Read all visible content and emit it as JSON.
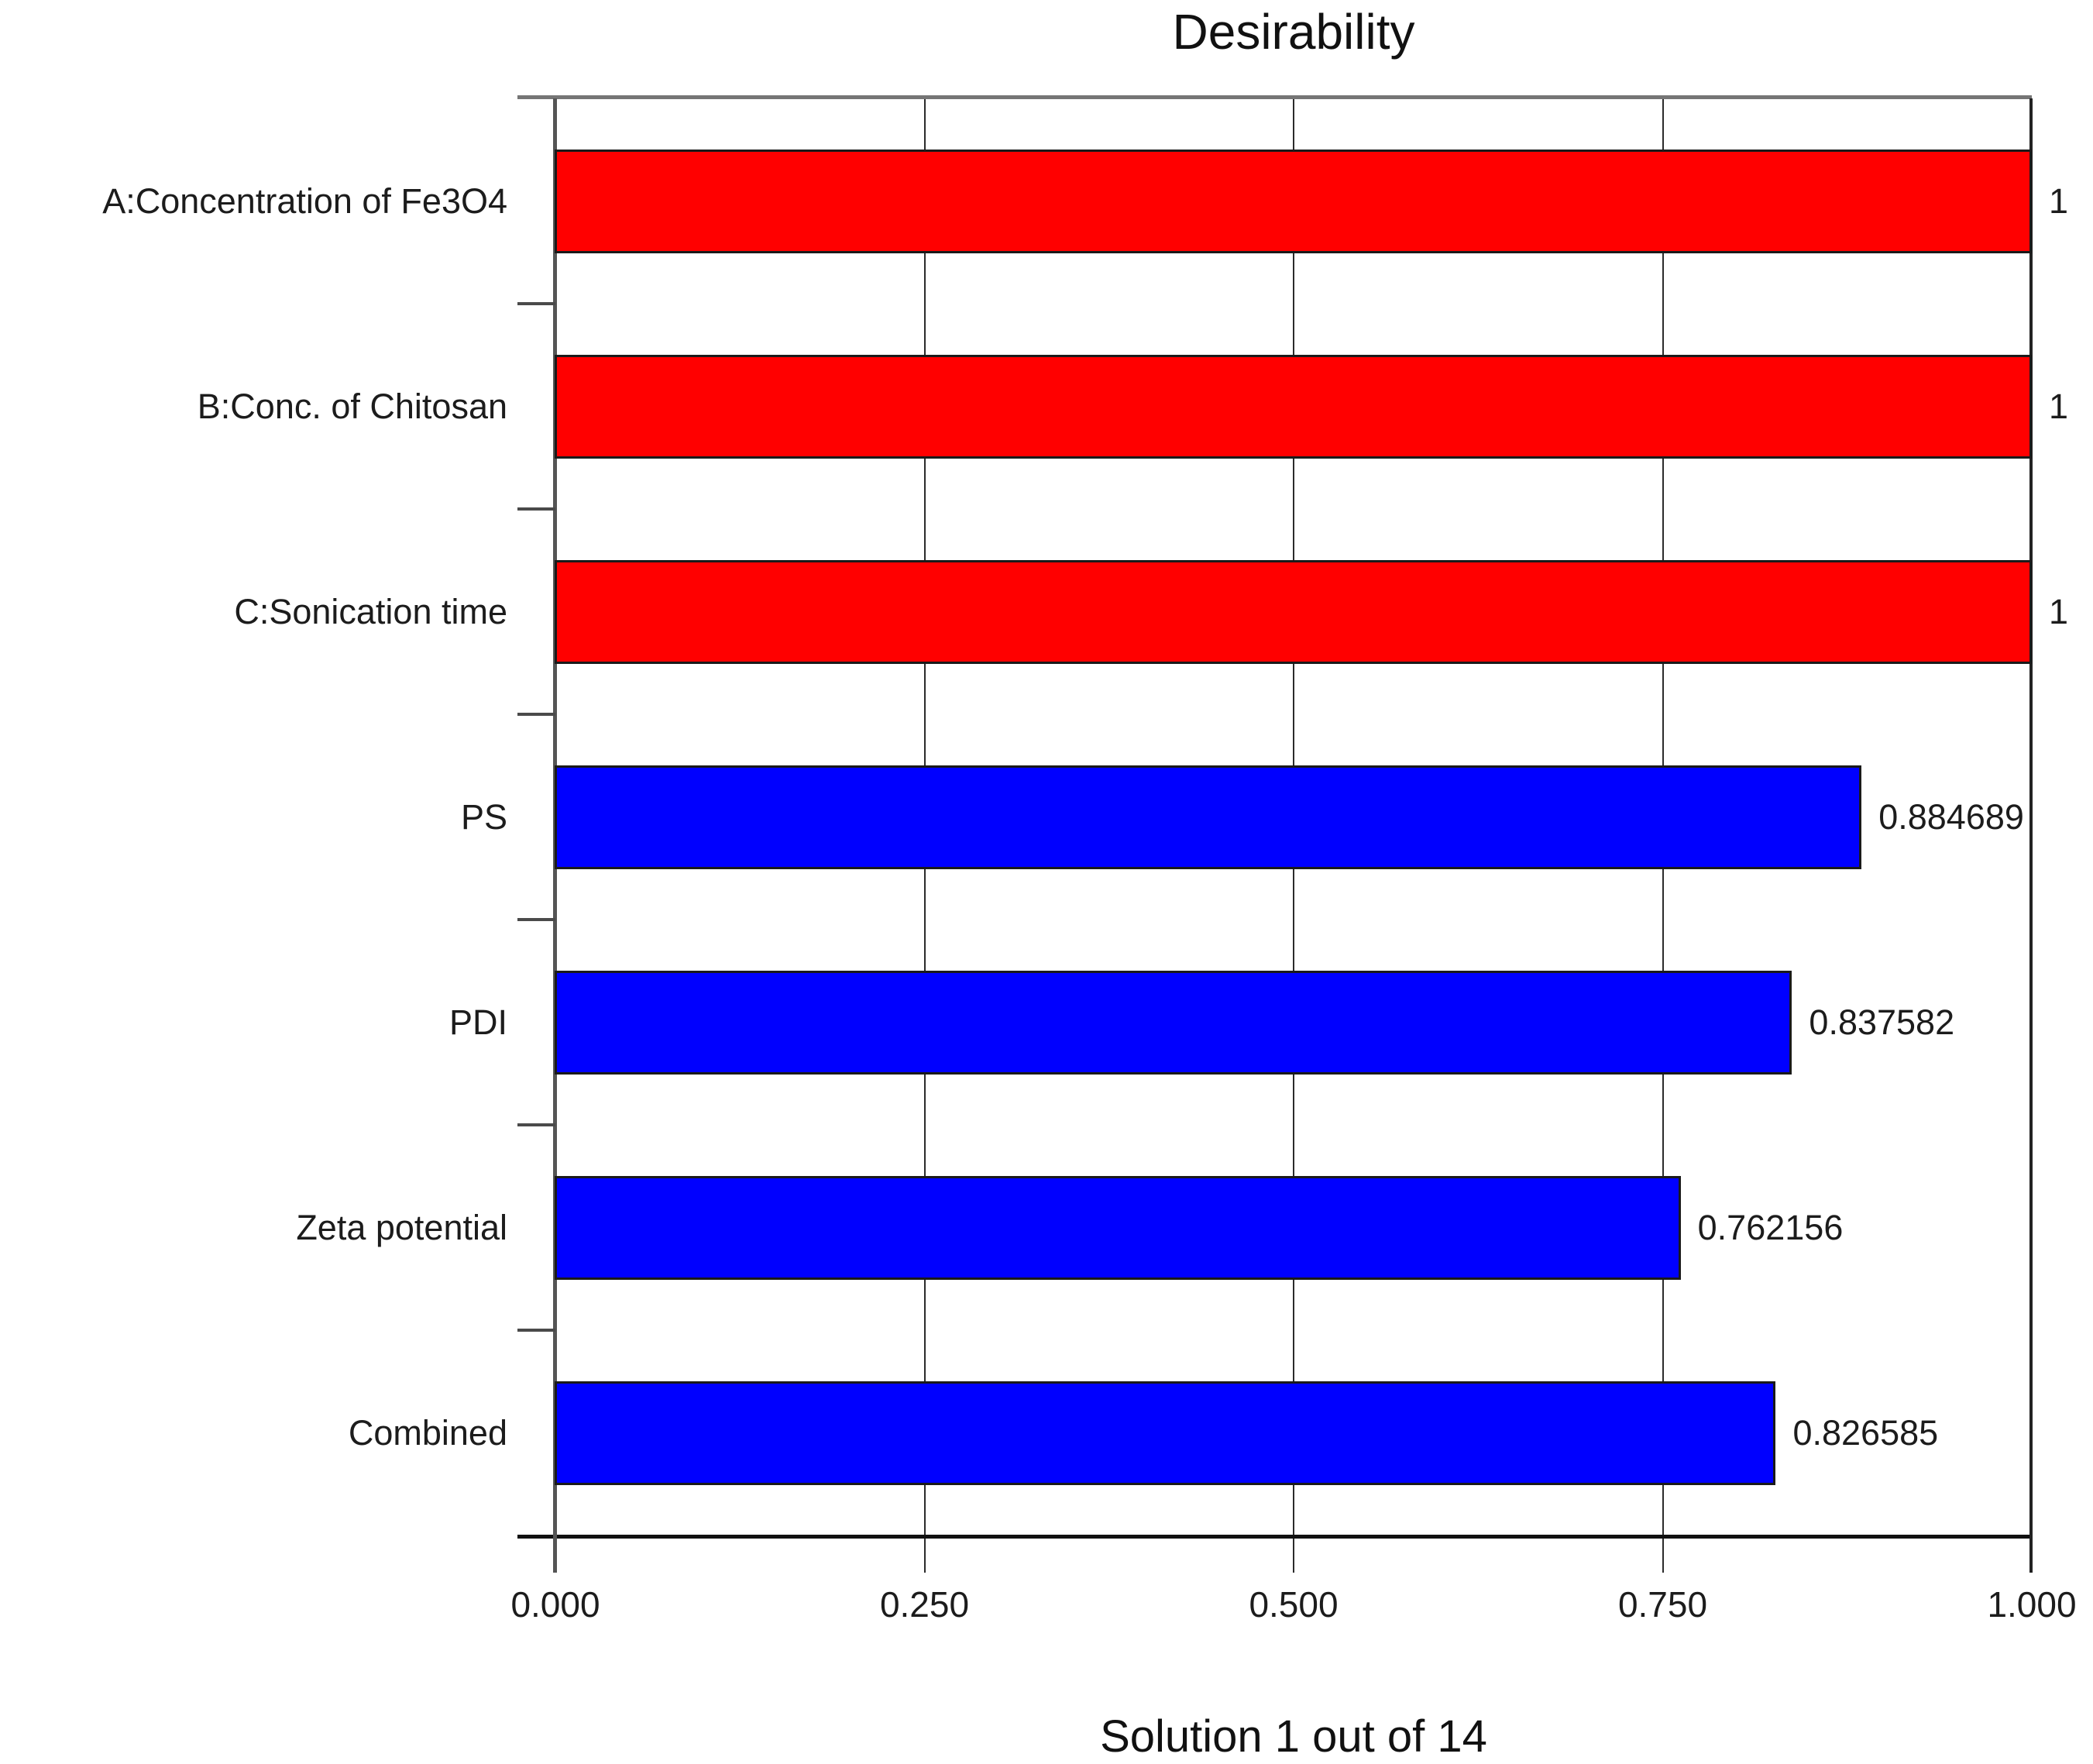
{
  "title": "Desirability",
  "caption": "Solution 1 out of 14",
  "colors": {
    "factor_bar": "#ff0000",
    "response_bar": "#0000ff",
    "bar_border": "#1a1a1a",
    "gridline": "#2b2b2b",
    "frame_top": "#757575",
    "frame_bottom": "#111111",
    "axis": "#555555",
    "text": "#1c1c1c"
  },
  "chart_data": {
    "type": "bar",
    "orientation": "horizontal",
    "title": "Desirability",
    "xlabel": "",
    "ylabel": "",
    "xlim": [
      0.0,
      1.0
    ],
    "grid": true,
    "legend_position": "none",
    "categories": [
      "A:Concentration of Fe3O4",
      "B:Conc. of Chitosan",
      "C:Sonication time",
      "PS",
      "PDI",
      "Zeta potential",
      "Combined"
    ],
    "values": [
      1,
      1,
      1,
      0.884689,
      0.837582,
      0.762156,
      0.826585
    ],
    "value_labels": [
      "1",
      "1",
      "1",
      "0.884689",
      "0.837582",
      "0.762156",
      "0.826585"
    ],
    "bar_colors": [
      "#ff0000",
      "#ff0000",
      "#ff0000",
      "#0000ff",
      "#0000ff",
      "#0000ff",
      "#0000ff"
    ],
    "x_ticks": [
      {
        "value": 0.0,
        "label": "0.000"
      },
      {
        "value": 0.25,
        "label": "0.250"
      },
      {
        "value": 0.5,
        "label": "0.500"
      },
      {
        "value": 0.75,
        "label": "0.750"
      },
      {
        "value": 1.0,
        "label": "1.000"
      }
    ],
    "gridline_values": [
      0.25,
      0.5,
      0.75
    ],
    "annotation": "Solution 1 out of 14"
  }
}
